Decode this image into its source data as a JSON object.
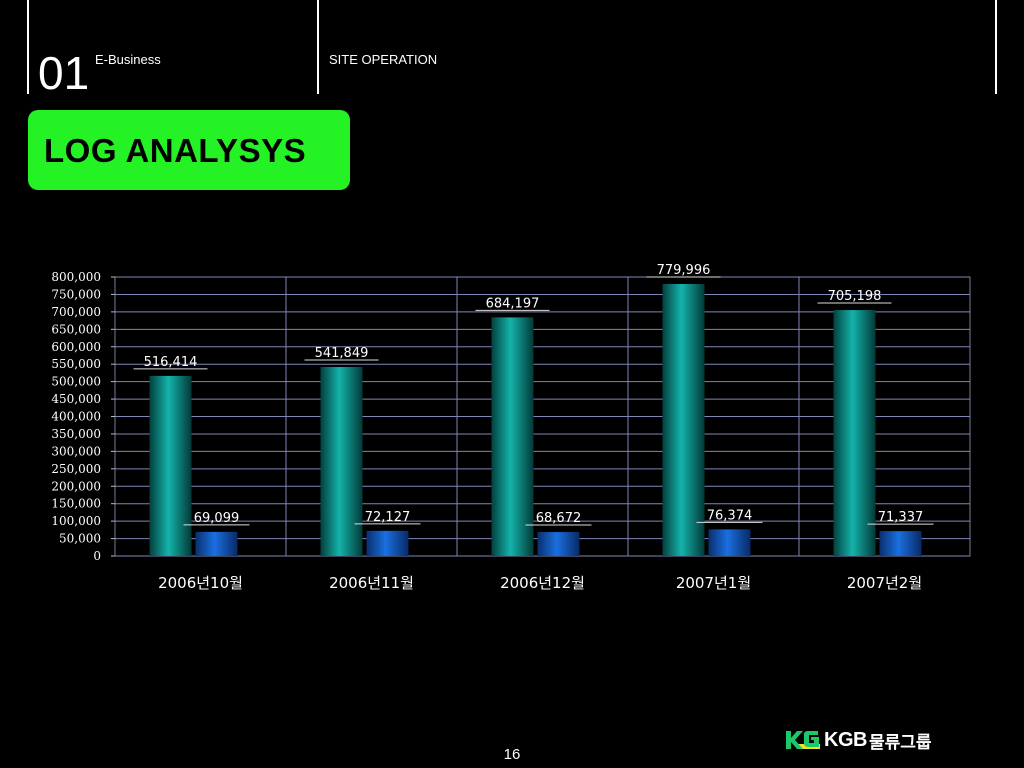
{
  "header": {
    "section_number": "01",
    "section_name": "E-Business",
    "topic_name": "SITE OPERATION"
  },
  "title": "LOG ANALYSYS",
  "footer": {
    "page_number": "16",
    "logo_text": "KGB",
    "logo_text_kr": "물류그룹",
    "logo_mark_icon": "kgb-logo-icon"
  },
  "colors": {
    "title_box": "#25f225",
    "series_1": "#0a8f8a",
    "series_2": "#0d54b8"
  },
  "chart_data": {
    "type": "bar",
    "categories": [
      "2006년10월",
      "2006년11월",
      "2006년12월",
      "2007년1월",
      "2007년2월"
    ],
    "series": [
      {
        "values": [
          516414,
          541849,
          684197,
          779996,
          705198
        ],
        "labels": [
          "516,414",
          "541,849",
          "684,197",
          "779,996",
          "705,198"
        ]
      },
      {
        "values": [
          69099,
          72127,
          68672,
          76374,
          71337
        ],
        "labels": [
          "69,099",
          "72,127",
          "68,672",
          "76,374",
          "71,337"
        ]
      }
    ],
    "ylim": [
      0,
      800000
    ],
    "yticks": [
      0,
      50000,
      100000,
      150000,
      200000,
      250000,
      300000,
      350000,
      400000,
      450000,
      500000,
      550000,
      600000,
      650000,
      700000,
      750000,
      800000
    ],
    "ytick_labels": [
      "0",
      "50,000",
      "100,000",
      "150,000",
      "200,000",
      "250,000",
      "300,000",
      "350,000",
      "400,000",
      "450,000",
      "500,000",
      "550,000",
      "600,000",
      "650,000",
      "700,000",
      "750,000",
      "800,000"
    ],
    "grid": true,
    "legend": "none"
  }
}
